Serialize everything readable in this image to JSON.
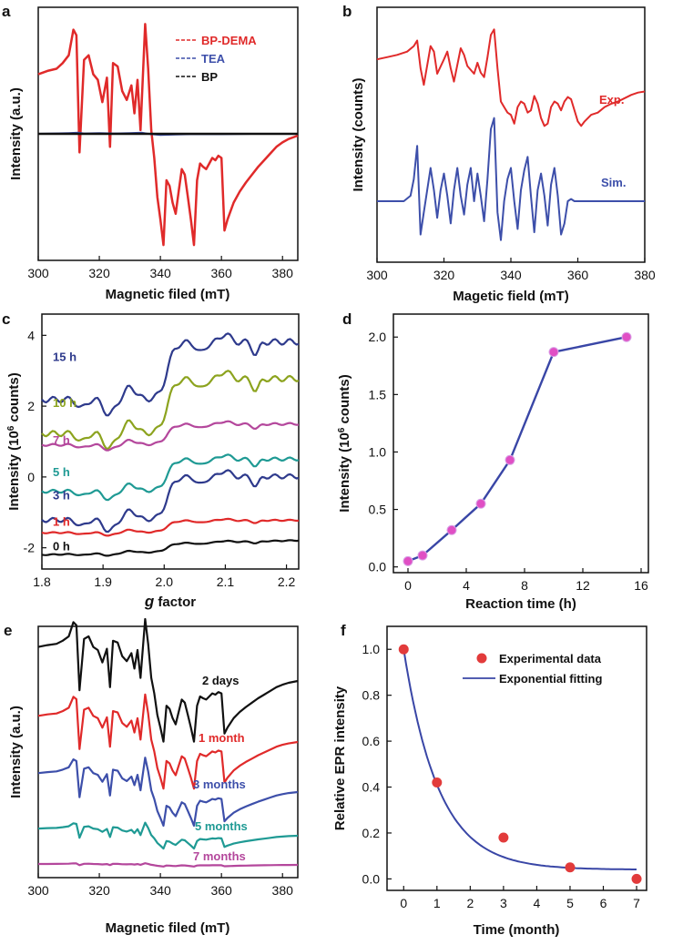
{
  "colors": {
    "red": "#e02a2a",
    "blue": "#3d4faa",
    "black": "#111111",
    "navy": "#2e3a8c",
    "olive": "#8ca31e",
    "magenta": "#b4479c",
    "teal": "#1f9a94",
    "fitline": "#3946a6",
    "marker": "#e23b3b",
    "pinkmarker": "#e04fc4"
  },
  "chart_data": [
    {
      "panel": "a",
      "type": "line",
      "xlabel": "Magnetic filed (mT)",
      "ylabel": "Intensity (a.u.)",
      "xlim": [
        300,
        385
      ],
      "xticks": [
        300,
        320,
        340,
        360,
        380
      ],
      "series": [
        {
          "name": "BP-DEMA",
          "color": "#e02a2a",
          "width": 2.5,
          "x": [
            300,
            303,
            306,
            308,
            310,
            311.5,
            312.5,
            313.5,
            315,
            316.5,
            318,
            319.5,
            321,
            322.5,
            323.5,
            324.5,
            326,
            327.5,
            329,
            330.5,
            331.5,
            332.5,
            333.5,
            335,
            336,
            337,
            338,
            339,
            340,
            341,
            342,
            343,
            344,
            345,
            346,
            347,
            348,
            349,
            350,
            351,
            352,
            353,
            354,
            355,
            356,
            357,
            358,
            359,
            360,
            361,
            362,
            364,
            366,
            368,
            370,
            372,
            374,
            376,
            378,
            380,
            382,
            385
          ],
          "y": [
            0.55,
            0.58,
            0.6,
            0.65,
            0.72,
            0.95,
            0.9,
            -0.15,
            0.68,
            0.72,
            0.55,
            0.5,
            0.3,
            0.52,
            -0.1,
            0.65,
            0.62,
            0.4,
            0.32,
            0.45,
            0.2,
            0.5,
            0.05,
            1.0,
            0.6,
            0.05,
            -0.2,
            -0.55,
            -0.75,
            -0.98,
            -0.4,
            -0.45,
            -0.6,
            -0.7,
            -0.5,
            -0.3,
            -0.35,
            -0.55,
            -0.75,
            -0.98,
            -0.4,
            -0.25,
            -0.28,
            -0.3,
            -0.25,
            -0.2,
            -0.22,
            -0.18,
            -0.2,
            -0.85,
            -0.75,
            -0.6,
            -0.5,
            -0.42,
            -0.35,
            -0.28,
            -0.22,
            -0.16,
            -0.1,
            -0.06,
            -0.03,
            -0.0
          ]
        },
        {
          "name": "TEA",
          "color": "#3d4faa",
          "width": 2,
          "x": [
            300,
            310,
            313,
            315,
            320,
            325,
            330,
            334,
            336,
            340,
            345,
            350,
            360,
            370,
            385
          ],
          "y": [
            0.0,
            0.02,
            0.03,
            0.01,
            0.02,
            0.01,
            0.02,
            0.03,
            0.0,
            -0.03,
            -0.02,
            -0.01,
            -0.01,
            0.0,
            0.0
          ]
        },
        {
          "name": "BP",
          "color": "#111111",
          "width": 2,
          "x": [
            300,
            385
          ],
          "y": [
            0.0,
            0.0
          ]
        }
      ]
    },
    {
      "panel": "b",
      "type": "line",
      "xlabel": "Magetic field (mT)",
      "ylabel": "Intensity (counts)",
      "xlim": [
        300,
        380
      ],
      "xticks": [
        300,
        320,
        340,
        360,
        380
      ],
      "series": [
        {
          "name": "Exp.",
          "color": "#e02a2a",
          "width": 2,
          "x": [
            300,
            303,
            306,
            309,
            311,
            312,
            313,
            314,
            316,
            317,
            318,
            320,
            321,
            322,
            323,
            325,
            326,
            327,
            329,
            330,
            331,
            332,
            333,
            334,
            335,
            336,
            337,
            338,
            339,
            340,
            341,
            342,
            343,
            344,
            345,
            346,
            347,
            348,
            349,
            350,
            351,
            352,
            353,
            354,
            355,
            356,
            357,
            358,
            359,
            360,
            361,
            362,
            364,
            366,
            368,
            370,
            372,
            374,
            376,
            378,
            380
          ],
          "y": [
            0.68,
            0.7,
            0.72,
            0.75,
            0.8,
            0.85,
            0.6,
            0.45,
            0.8,
            0.75,
            0.55,
            0.68,
            0.75,
            0.6,
            0.48,
            0.78,
            0.72,
            0.62,
            0.55,
            0.65,
            0.56,
            0.52,
            0.7,
            0.9,
            0.95,
            0.6,
            0.3,
            0.25,
            0.2,
            0.18,
            0.1,
            0.25,
            0.3,
            0.28,
            0.2,
            0.22,
            0.35,
            0.28,
            0.15,
            0.08,
            0.1,
            0.25,
            0.3,
            0.28,
            0.22,
            0.3,
            0.34,
            0.32,
            0.22,
            0.12,
            0.08,
            0.12,
            0.18,
            0.2,
            0.25,
            0.28,
            0.3,
            0.33,
            0.36,
            0.38,
            0.39
          ]
        },
        {
          "name": "Sim.",
          "color": "#3d4faa",
          "width": 2,
          "x": [
            300,
            305,
            308,
            310,
            311,
            312,
            313,
            314,
            315,
            316,
            317,
            318,
            319,
            320,
            321,
            322,
            323,
            324,
            325,
            326,
            327,
            328,
            329,
            330,
            331,
            332,
            333,
            334,
            335,
            336,
            337,
            338,
            339,
            340,
            341,
            342,
            343,
            344,
            345,
            346,
            347,
            348,
            349,
            350,
            351,
            352,
            353,
            354,
            355,
            356,
            357,
            358,
            359,
            360,
            362,
            365,
            370,
            375,
            380
          ],
          "y": [
            -0.6,
            -0.6,
            -0.6,
            -0.55,
            -0.4,
            -0.1,
            -0.9,
            -0.7,
            -0.5,
            -0.3,
            -0.5,
            -0.75,
            -0.5,
            -0.35,
            -0.55,
            -0.8,
            -0.5,
            -0.3,
            -0.55,
            -0.72,
            -0.45,
            -0.3,
            -0.6,
            -0.35,
            -0.55,
            -0.78,
            -0.4,
            0.05,
            0.15,
            -0.7,
            -0.95,
            -0.6,
            -0.4,
            -0.3,
            -0.6,
            -0.85,
            -0.5,
            -0.32,
            -0.2,
            -0.55,
            -0.88,
            -0.5,
            -0.35,
            -0.55,
            -0.82,
            -0.45,
            -0.3,
            -0.55,
            -0.9,
            -0.8,
            -0.6,
            -0.58,
            -0.6,
            -0.6,
            -0.6,
            -0.6,
            -0.6,
            -0.6,
            -0.6
          ]
        }
      ]
    },
    {
      "panel": "c",
      "type": "line",
      "xlabel": "g factor",
      "ylabel": "Intensity (10^6 counts)",
      "xlim": [
        1.8,
        2.22
      ],
      "ylim": [
        -2.6,
        4.6
      ],
      "xticks": [
        "1.8",
        "1.9",
        "2.0",
        "2.1",
        "2.2"
      ],
      "yticks": [
        "-2",
        "0",
        "2",
        "4"
      ],
      "series": [
        {
          "name": "15 h",
          "color": "#2e3a8c",
          "labelY": 3.4,
          "offset": 3.0
        },
        {
          "name": "10 h",
          "color": "#8ca31e",
          "labelY": 2.1,
          "offset": 2.0
        },
        {
          "name": "7 h",
          "color": "#b4479c",
          "labelY": 1.05,
          "offset": 1.2
        },
        {
          "name": "5 h",
          "color": "#1f9a94",
          "labelY": 0.15,
          "offset": 0.05
        },
        {
          "name": "3 h",
          "color": "#2e3a8c",
          "labelY": -0.5,
          "offset": -0.6
        },
        {
          "name": "1 h",
          "color": "#e02a2a",
          "labelY": -1.25,
          "offset": -1.4
        },
        {
          "name": "0 h",
          "color": "#111111",
          "labelY": -1.95,
          "offset": -2.0
        }
      ]
    },
    {
      "panel": "d",
      "type": "line",
      "xlabel": "Reaction time (h)",
      "ylabel": "Intensity (10^6 counts)",
      "xlim": [
        -1,
        16.5
      ],
      "ylim": [
        -0.05,
        2.2
      ],
      "xticks": [
        0,
        4,
        8,
        12,
        16
      ],
      "yticks": [
        "0.0",
        "0.5",
        "1.0",
        "1.5",
        "2.0"
      ],
      "x": [
        0,
        1,
        3,
        5,
        7,
        10,
        15
      ],
      "values": [
        0.05,
        0.1,
        0.32,
        0.55,
        0.93,
        1.87,
        2.0
      ]
    },
    {
      "panel": "e",
      "type": "line",
      "xlabel": "Magnetic filed (mT)",
      "ylabel": "Intensity (a.u.)",
      "xlim": [
        300,
        385
      ],
      "xticks": [
        300,
        320,
        340,
        360,
        380
      ],
      "series": [
        {
          "name": "2 days",
          "color": "#111111",
          "scale": 1.0,
          "offset": 0
        },
        {
          "name": "1 month",
          "color": "#e02a2a",
          "scale": 0.55,
          "offset": 1
        },
        {
          "name": "3 months",
          "color": "#3d4faa",
          "scale": 0.35,
          "offset": 2
        },
        {
          "name": "5 months",
          "color": "#1f9a94",
          "scale": 0.12,
          "offset": 3
        },
        {
          "name": "7 months",
          "color": "#b4479c",
          "scale": 0.02,
          "offset": 4
        }
      ]
    },
    {
      "panel": "f",
      "type": "scatter",
      "xlabel": "Time (month)",
      "ylabel": "Relative EPR intensity",
      "xlim": [
        -0.5,
        7.3
      ],
      "ylim": [
        -0.05,
        1.1
      ],
      "xticks": [
        0,
        1,
        2,
        3,
        4,
        5,
        6,
        7
      ],
      "yticks": [
        "0.0",
        "0.2",
        "0.4",
        "0.6",
        "0.8",
        "1.0"
      ],
      "legend": [
        "Experimental data",
        "Exponential fitting"
      ],
      "x": [
        0,
        1,
        3,
        5,
        7
      ],
      "values": [
        1.0,
        0.42,
        0.18,
        0.05,
        0.0
      ],
      "fit": {
        "a": 0.96,
        "tau": 1.05,
        "c": 0.04
      }
    }
  ]
}
